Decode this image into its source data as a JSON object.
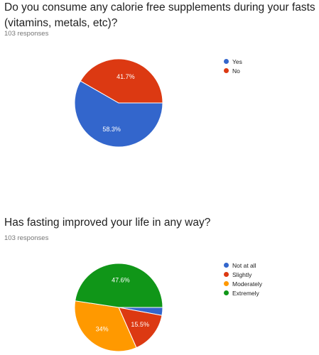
{
  "chart_data": [
    {
      "type": "pie",
      "title": "Do you consume any calorie free supplements during your fasts (vitamins, metals, etc)?",
      "subtitle": "103 responses",
      "categories": [
        "Yes",
        "No"
      ],
      "values": [
        58.3,
        41.7
      ],
      "labels": [
        "58.3%",
        "41.7%"
      ],
      "colors": [
        "#3366cc",
        "#dc3912"
      ],
      "legend": "right"
    },
    {
      "type": "pie",
      "title": "Has fasting improved your life in any way?",
      "subtitle": "103 responses",
      "categories": [
        "Not at all",
        "Slightly",
        "Moderately",
        "Extremely"
      ],
      "values": [
        2.9,
        15.5,
        34,
        47.6
      ],
      "labels": [
        "",
        "15.5%",
        "34%",
        "47.6%"
      ],
      "colors": [
        "#3366cc",
        "#dc3912",
        "#ff9900",
        "#109618"
      ],
      "legend": "right"
    }
  ]
}
